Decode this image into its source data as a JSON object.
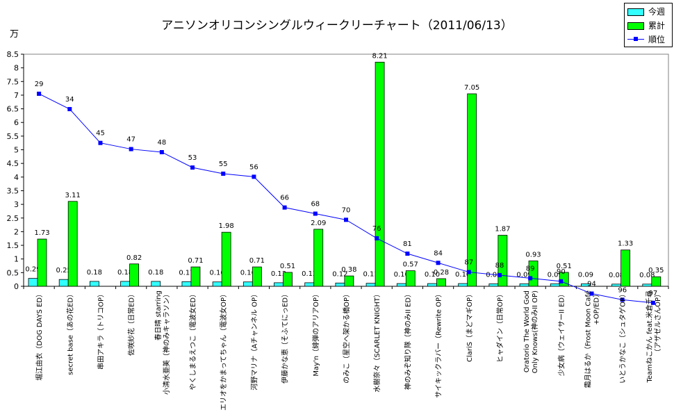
{
  "title": "アニソンオリコンシングルウィークリーチャート（2011/06/13）",
  "unit": "万",
  "legend": {
    "weekly": "今週",
    "cumulative": "累計",
    "rank": "順位"
  },
  "colors": {
    "weekly": "#33ffff",
    "cumulative": "#00ff00",
    "rank": "#0000ff"
  },
  "chart_data": {
    "type": "bar",
    "title": "アニソンオリコンシングルウィークリーチャート（2011/06/13）",
    "ylabel": "万",
    "ylim": [
      0,
      8.5
    ],
    "yticks": [
      "0",
      "0.5",
      "1",
      "1.5",
      "2",
      "2.5",
      "3",
      "3.5",
      "4",
      "4.5",
      "5",
      "5.5",
      "6",
      "6.5",
      "7",
      "7.5",
      "8",
      "8.5"
    ],
    "grid": false,
    "legend_position": "top-right",
    "categories": [
      "堀江由衣（DOG DAYS ED）",
      "secret base（あの花ED）",
      "串田アキラ（トリコOP）",
      "佐咲紗花（日常ED）",
      "春日晴 starring 小清水亜美（神のみキャラソン）",
      "やくしまるえつこ（電波女ED）",
      "エリオをかまってちゃん（電波女OP）",
      "河野マリナ（Aチャンネル OP）",
      "伊藤かな恵（そふてにっED）",
      "May'n（緋弾のアリアOP）",
      "のみこ（星空へ架かる橋OP）",
      "水樹奈々（SCARLET KNIGHT）",
      "神のみぞ知り隊（神のみII ED）",
      "サイキックラバー（Rewrite OP）",
      "ClariS（まどマギOP）",
      "ヒャダイン（日常OP）",
      "Oratorio The World God Only Knows(神のみII OP)",
      "少女病（ウェイサーII ED）",
      "霜月はるか（Frost Moon Café +OP/ED）",
      "いとうかなこ（シュタゲOP）",
      "Teamねこかん feat.米倉千尋（アザゼルさんOP）"
    ],
    "series": [
      {
        "name": "今週",
        "type": "bar",
        "values": [
          0.29,
          0.25,
          0.18,
          0.18,
          0.18,
          0.17,
          0.16,
          0.16,
          0.13,
          0.13,
          0.12,
          0.11,
          0.1,
          0.1,
          0.1,
          0.09,
          0.09,
          0.09,
          0.09,
          0.08,
          0.08
        ],
        "labels": [
          "0.29",
          "0.25",
          "0.18",
          "0.18",
          "0.18",
          "0.17",
          "0.16",
          "0.16",
          "0.13",
          "0.13",
          "0.12",
          "0.11",
          "0.10",
          "0.10",
          "0.10",
          "0.09",
          "0.09",
          "0.09",
          "0.09",
          "0.08",
          "0.08"
        ]
      },
      {
        "name": "累計",
        "type": "bar",
        "values": [
          1.73,
          3.11,
          null,
          0.82,
          null,
          0.71,
          1.98,
          0.71,
          0.51,
          2.09,
          0.38,
          8.21,
          0.57,
          0.28,
          7.05,
          1.87,
          0.93,
          0.51,
          null,
          1.33,
          0.35
        ],
        "labels": [
          "1.73",
          "3.11",
          "",
          "0.82",
          "",
          "0.71",
          "1.98",
          "0.71",
          "0.51",
          "2.09",
          "0.38",
          "8.21",
          "0.57",
          "0.28",
          "7.05",
          "1.87",
          "0.93",
          "0.51",
          "",
          "1.33",
          "0.35"
        ]
      },
      {
        "name": "順位",
        "type": "line",
        "values": [
          29,
          34,
          45,
          47,
          48,
          53,
          55,
          56,
          66,
          68,
          70,
          76,
          81,
          84,
          87,
          88,
          89,
          90,
          94,
          96,
          97
        ],
        "labels": [
          "29",
          "34",
          "45",
          "47",
          "48",
          "53",
          "55",
          "56",
          "66",
          "68",
          "70",
          "76",
          "81",
          "84",
          "87",
          "88",
          "89",
          "90",
          "94",
          "96",
          "97"
        ]
      }
    ]
  }
}
